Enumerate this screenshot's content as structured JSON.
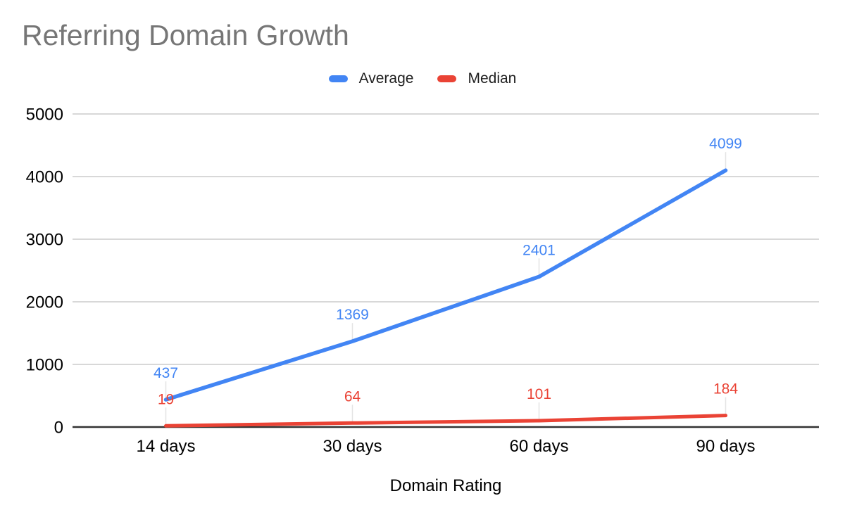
{
  "chart_data": {
    "type": "line",
    "title": "Referring Domain Growth",
    "xlabel": "Domain Rating",
    "ylabel": "",
    "categories": [
      "14 days",
      "30 days",
      "60 days",
      "90 days"
    ],
    "series": [
      {
        "name": "Average",
        "color": "#4285F4",
        "values": [
          437,
          1369,
          2401,
          4099
        ]
      },
      {
        "name": "Median",
        "color": "#EA4335",
        "values": [
          19,
          64,
          101,
          184
        ]
      }
    ],
    "ylim": [
      0,
      5000
    ],
    "yticks": [
      0,
      1000,
      2000,
      3000,
      4000,
      5000
    ],
    "grid": true,
    "legend_position": "top",
    "data_labels": true
  },
  "style": {
    "title_color": "#767676",
    "axis_text_color": "#000000",
    "legend_text_color": "#1f1f1f",
    "gridline_color": "#cccccc",
    "zero_axis_color": "#333333",
    "leader_line_color": "#e4e4e4",
    "background": "#ffffff"
  }
}
